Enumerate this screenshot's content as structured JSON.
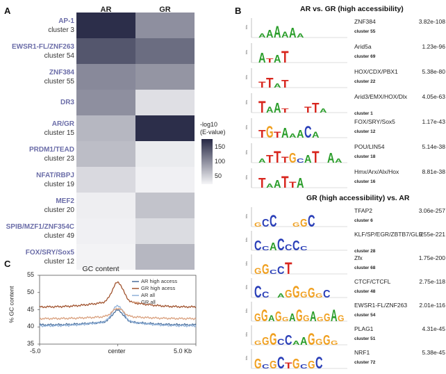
{
  "panels": {
    "a": "A",
    "b": "B",
    "c": "C"
  },
  "heatmap": {
    "columns": [
      "AR",
      "GR"
    ],
    "rows": [
      {
        "name": "AP-1",
        "cluster": "cluster 3",
        "values": [
          190,
          105
        ]
      },
      {
        "name": "EWSR1-FL/ZNF263",
        "cluster": "cluster 54",
        "values": [
          155,
          135
        ]
      },
      {
        "name": "ZNF384",
        "cluster": "cluster 55",
        "values": [
          110,
          100
        ]
      },
      {
        "name": "DR3",
        "cluster": "",
        "values": [
          105,
          35
        ]
      },
      {
        "name": "AR/GR",
        "cluster": "cluster 15",
        "values": [
          70,
          190
        ]
      },
      {
        "name": "PRDM1/TEAD",
        "cluster": "cluster 23",
        "values": [
          65,
          25
        ]
      },
      {
        "name": "NFAT/RBPJ",
        "cluster": "cluster 19",
        "values": [
          40,
          20
        ]
      },
      {
        "name": "MEF2",
        "cluster": "cluster 20",
        "values": [
          22,
          60
        ]
      },
      {
        "name": "SPIB/MZF1/ZNF354C",
        "cluster": "cluster 49",
        "values": [
          20,
          38
        ]
      },
      {
        "name": "FOX/SRY/Sox5",
        "cluster": "cluster 12",
        "values": [
          18,
          70
        ]
      }
    ],
    "colorbar": {
      "title_line1": "-log10",
      "title_line2": "(E-value)",
      "ticks": [
        "150",
        "100",
        "50"
      ],
      "low_color": "#f6f6f8",
      "high_color": "#262845"
    }
  },
  "motifs_top": {
    "title": "AR vs. GR (high accessibility)",
    "items": [
      {
        "name": "ZNF384",
        "cluster": "cluster 55",
        "evalue": "3.82e-108",
        "logo": "AAAAAA"
      },
      {
        "name": "Arid5a",
        "cluster": "cluster 69",
        "evalue": "1.23e-96",
        "logo": "ATAT"
      },
      {
        "name": "HOX/CDX/PBX1",
        "cluster": "cluster 22",
        "evalue": "5.38e-80",
        "logo": "TTAT"
      },
      {
        "name": "Arid3/EMX/HOX/Dlx",
        "cluster": "cluster 1",
        "evalue": "4.05e-63",
        "logo": "TAAT  TTA"
      },
      {
        "name": "FOX/SRY/Sox5",
        "cluster": "cluster 12",
        "evalue": "1.17e-43",
        "logo": "TGTAAACA"
      },
      {
        "name": "POU/LIN54",
        "cluster": "cluster 18",
        "evalue": "5.14e-38",
        "logo": "ATTTGCAT AA"
      },
      {
        "name": "Hmx/Arx/Alx/Hox",
        "cluster": "cluster 16",
        "evalue": "8.81e-38",
        "logo": "TAATTA"
      }
    ]
  },
  "motifs_bottom": {
    "title": "GR (high accessibility) vs. AR",
    "items": [
      {
        "name": "TFAP2",
        "cluster": "cluster 6",
        "evalue": "3.06e-257",
        "logo": "GCC  GGC"
      },
      {
        "name": "KLF/SP/EGR/ZBTB7/GLI2",
        "cluster": "cluster 28",
        "evalue": "9.55e-221",
        "logo": "CCACCCC"
      },
      {
        "name": "Zfx",
        "cluster": "cluster 68",
        "evalue": "1.75e-200",
        "logo": "GGCCT"
      },
      {
        "name": "CTCF/CTCFL",
        "cluster": "cluster 48",
        "evalue": "2.75e-118",
        "logo": "CC AGGGGGC"
      },
      {
        "name": "EWSR1-FL/ZNF263",
        "cluster": "cluster 54",
        "evalue": "2.01e-116",
        "logo": "GGAGGAGGAGGAG"
      },
      {
        "name": "PLAG1",
        "cluster": "cluster 51",
        "evalue": "4.31e-45",
        "logo": "GGGCCAAGGGG"
      },
      {
        "name": "NRF1",
        "cluster": "cluster 72",
        "evalue": "5.38e-45",
        "logo": "GCGCTGCGC"
      }
    ]
  },
  "logo_axis_label": "bits",
  "logo_colors": {
    "A": "#2a9d2a",
    "C": "#2a3fb8",
    "G": "#f0a020",
    "T": "#d8261e"
  },
  "gc_chart": {
    "chart_data": {
      "type": "line",
      "title": "GC content",
      "xlabel": "",
      "ylabel": "% GC content",
      "x_ticks": [
        "-5.0",
        "center",
        "5.0 Kb"
      ],
      "y_ticks": [
        35,
        40,
        45,
        50,
        55
      ],
      "ylim": [
        35,
        55
      ],
      "xlim": [
        -5,
        5
      ],
      "series": [
        {
          "name": "AR high access",
          "color": "#4a6e9a",
          "baseline": 40.6,
          "peak": 44.0
        },
        {
          "name": "GR high acess",
          "color": "#a0522d",
          "baseline": 45.8,
          "peak": 51.5
        },
        {
          "name": "AR all",
          "color": "#8fb0d8",
          "baseline": 40.3,
          "peak": 45.0
        },
        {
          "name": "GR all",
          "color": "#d9a07e",
          "baseline": 42.4,
          "peak": 44.8
        }
      ]
    }
  }
}
